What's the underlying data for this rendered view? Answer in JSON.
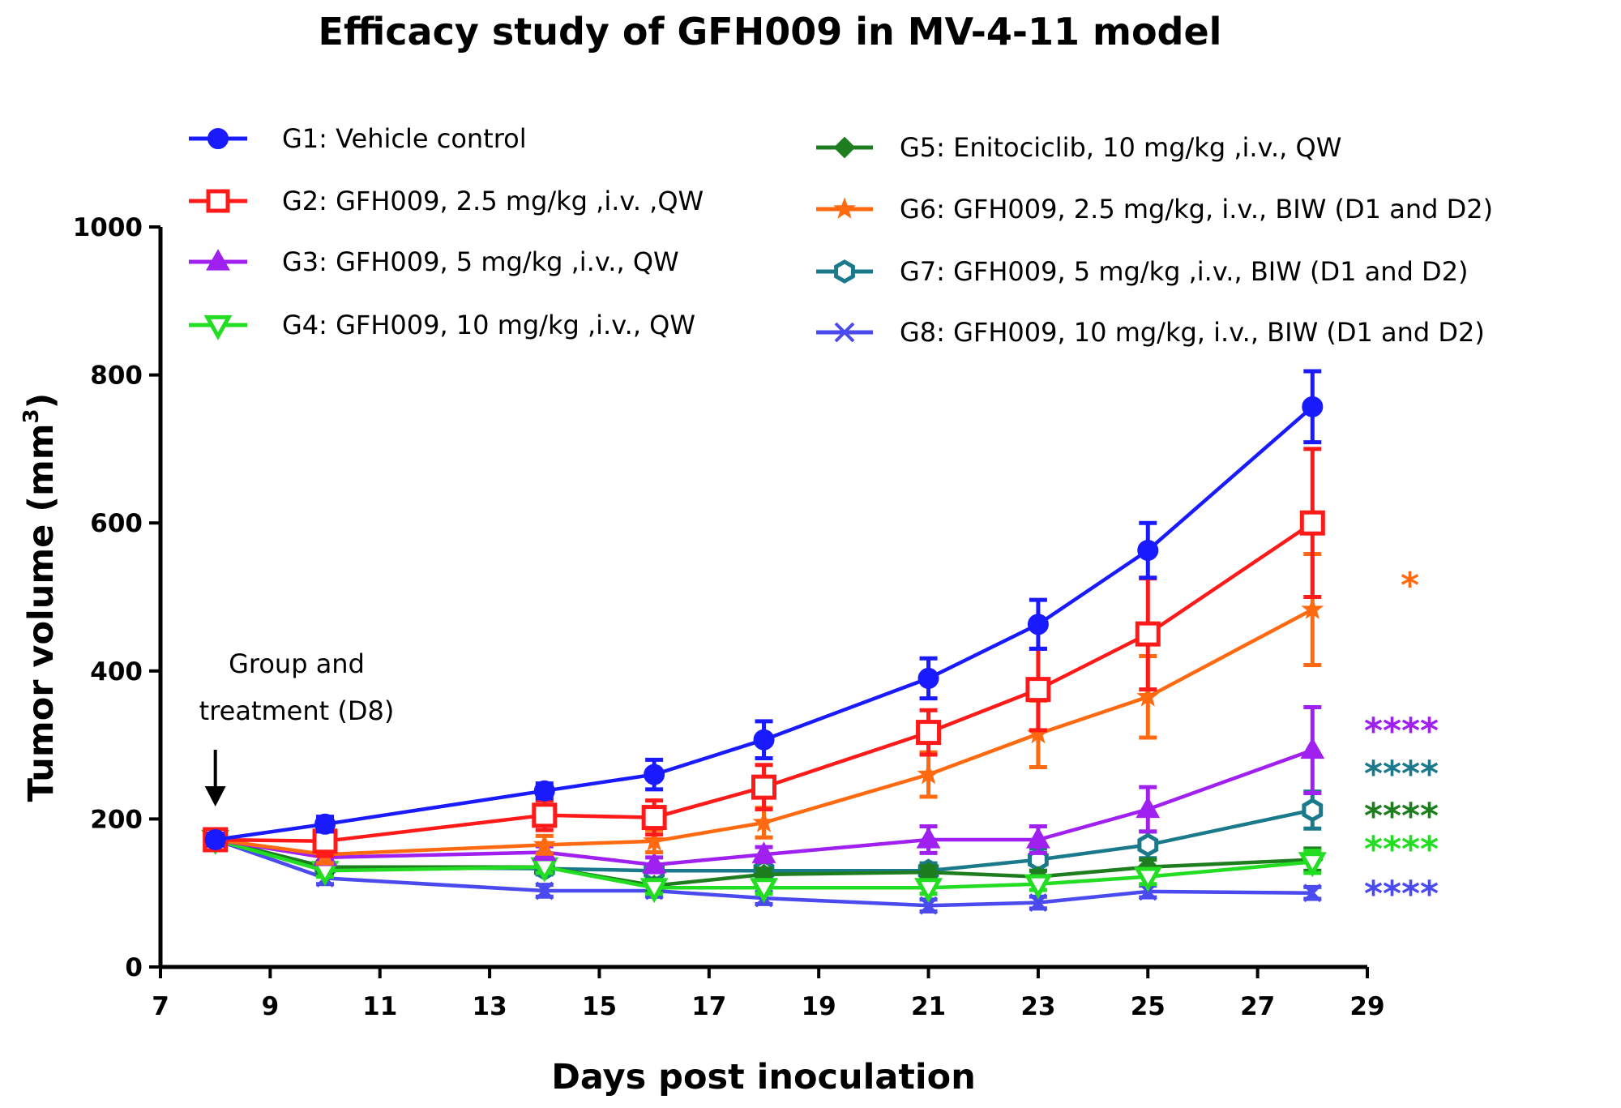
{
  "chart_data": {
    "type": "line",
    "title": "Efficacy study of GFH009 in MV-4-11 model",
    "xlabel": "Days post inoculation",
    "ylabel": "Tumor volume (mm",
    "ylabel_superscript": "3",
    "ylabel_close": ")",
    "xlim": [
      7,
      29
    ],
    "ylim": [
      0,
      1000
    ],
    "xticks": [
      "7",
      "9",
      "11",
      "13",
      "15",
      "17",
      "19",
      "21",
      "23",
      "25",
      "27",
      "29"
    ],
    "yticks": [
      "0",
      "200",
      "400",
      "600",
      "800",
      "1000"
    ],
    "x": [
      8,
      10,
      14,
      16,
      18,
      21,
      23,
      25,
      28
    ],
    "annotation": {
      "line1": "Group and",
      "line2": "treatment (D8)",
      "x": 8
    },
    "legend_placement": "top",
    "series": [
      {
        "name": "G1: Vehicle control",
        "color": "#1a1aff",
        "marker": "circle-filled",
        "values": [
          172,
          193,
          238,
          260,
          307,
          390,
          463,
          563,
          757
        ],
        "errors": [
          8,
          10,
          10,
          20,
          25,
          27,
          33,
          37,
          48
        ]
      },
      {
        "name": "G2: GFH009, 2.5 mg/kg ,i.v. ,QW",
        "color": "#ff1a1a",
        "marker": "square-open",
        "values": [
          172,
          170,
          205,
          202,
          243,
          317,
          375,
          450,
          600
        ],
        "errors": [
          8,
          20,
          20,
          23,
          30,
          30,
          55,
          75,
          100
        ]
      },
      {
        "name": "G3: GFH009, 5 mg/kg ,i.v., QW",
        "color": "#a020f0",
        "marker": "triangle-up-filled",
        "values": [
          172,
          148,
          155,
          138,
          152,
          172,
          172,
          213,
          293
        ],
        "errors": [
          8,
          8,
          8,
          10,
          10,
          18,
          18,
          30,
          58
        ]
      },
      {
        "name": "G4: GFH009, 10 mg/kg ,i.v., QW",
        "color": "#22dd22",
        "marker": "triangle-down-open",
        "values": [
          172,
          130,
          135,
          107,
          107,
          107,
          112,
          122,
          142
        ],
        "errors": [
          8,
          8,
          8,
          8,
          8,
          8,
          8,
          10,
          15
        ]
      },
      {
        "name": "G5: Enitociclib, 10 mg/kg ,i.v., QW",
        "color": "#1e7d1e",
        "marker": "diamond-filled",
        "values": [
          172,
          135,
          135,
          110,
          125,
          128,
          122,
          135,
          145
        ],
        "errors": [
          8,
          8,
          8,
          8,
          8,
          8,
          8,
          10,
          15
        ]
      },
      {
        "name": "G6: GFH009, 2.5 mg/kg, i.v., BIW (D1 and D2)",
        "color": "#ff6a10",
        "marker": "star-filled",
        "values": [
          172,
          152,
          165,
          170,
          195,
          260,
          315,
          365,
          483
        ],
        "errors": [
          8,
          12,
          12,
          15,
          20,
          30,
          45,
          55,
          75
        ]
      },
      {
        "name": "G7: GFH009, 5 mg/kg ,i.v., BIW (D1 and D2)",
        "color": "#1a7a8c",
        "marker": "hexagon-open",
        "values": [
          172,
          135,
          133,
          130,
          130,
          130,
          145,
          165,
          212
        ],
        "errors": [
          8,
          8,
          8,
          8,
          10,
          10,
          15,
          18,
          25
        ]
      },
      {
        "name": "G8: GFH009, 10 mg/kg, i.v., BIW (D1 and D2)",
        "color": "#4a4aee",
        "marker": "x",
        "values": [
          172,
          120,
          103,
          103,
          93,
          83,
          87,
          102,
          100
        ],
        "errors": [
          8,
          8,
          8,
          8,
          8,
          8,
          8,
          8,
          8
        ]
      }
    ],
    "significance": [
      {
        "text": "*",
        "color": "#ff6a10",
        "y": 515
      },
      {
        "text": "****",
        "color": "#a020f0",
        "y": 318
      },
      {
        "text": "****",
        "color": "#1a7a8c",
        "y": 260
      },
      {
        "text": "****",
        "color": "#1e7d1e",
        "y": 203
      },
      {
        "text": "****",
        "color": "#22dd22",
        "y": 158
      },
      {
        "text": "****",
        "color": "#4a4aee",
        "y": 98
      }
    ]
  }
}
